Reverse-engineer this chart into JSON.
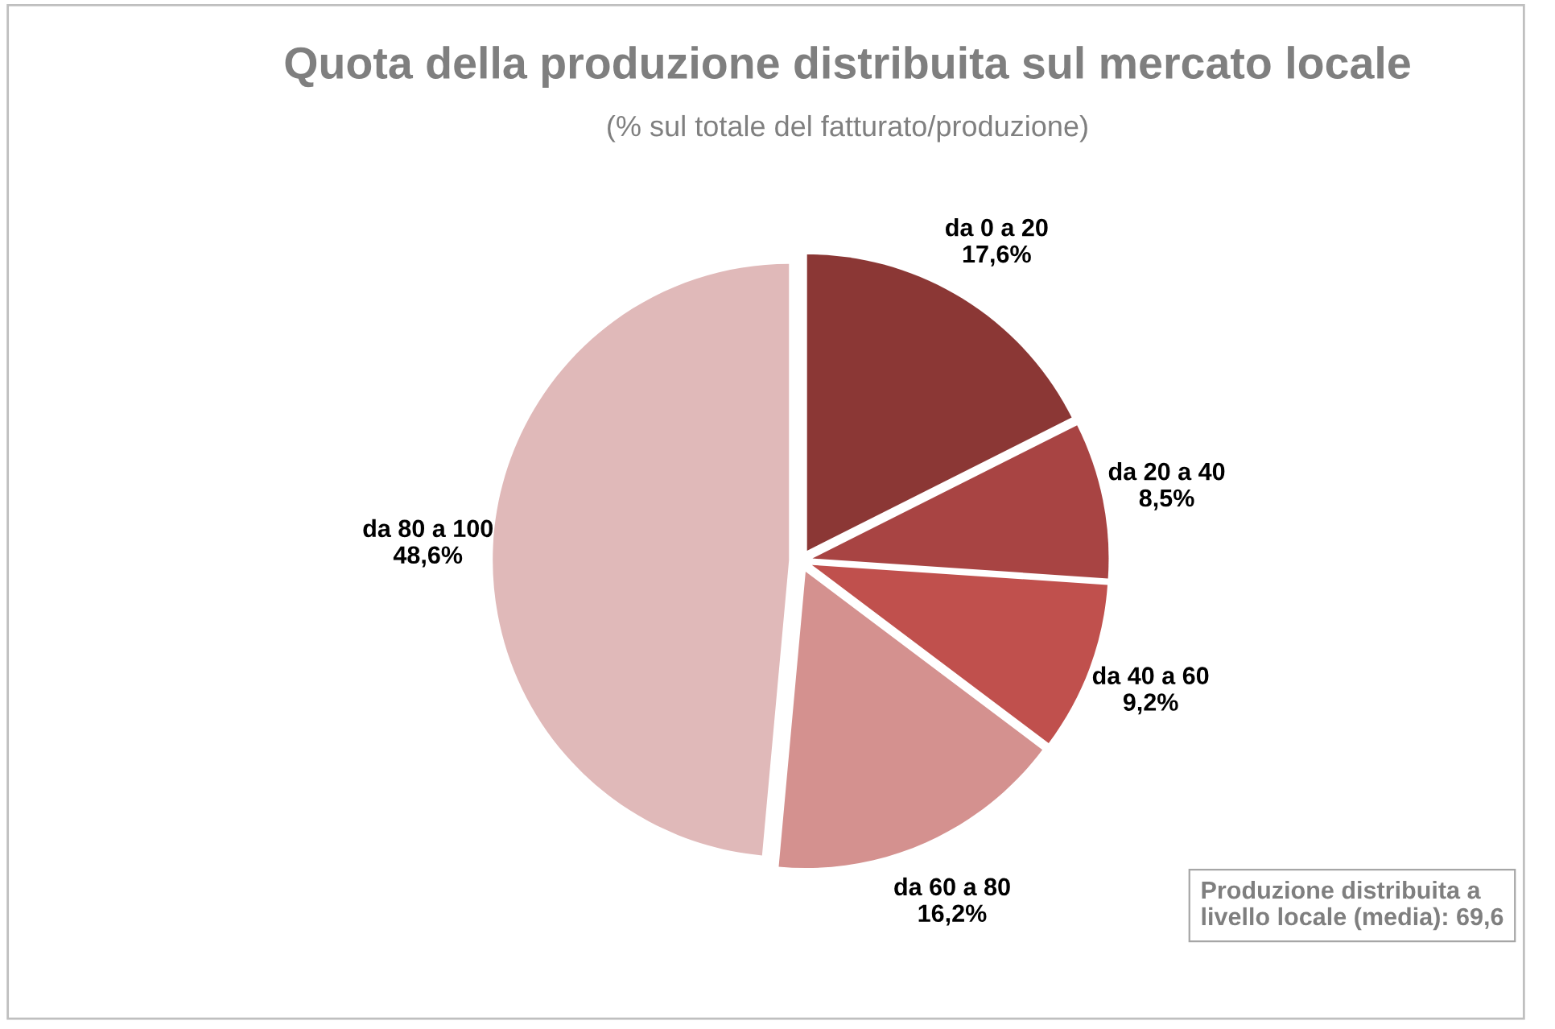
{
  "chart_data": {
    "type": "pie",
    "title": "Quota della produzione distribuita sul mercato locale",
    "subtitle": "(% sul totale del fatturato/produzione)",
    "categories": [
      "da 0 a 20",
      "da 20 a 40",
      "da 40 a 60",
      "da 60 a 80",
      "da 80 a 100"
    ],
    "values": [
      17.6,
      8.5,
      9.2,
      16.2,
      48.6
    ],
    "value_labels": [
      "17,6%",
      "8,5%",
      "9,2%",
      "16,2%",
      "48,6%"
    ],
    "colors": [
      "#8b3735",
      "#a84443",
      "#c0504d",
      "#d4918f",
      "#e0b9b9"
    ],
    "annotations": [
      "Produzione distribuita a\nlivello locale (media): 69,6"
    ]
  }
}
